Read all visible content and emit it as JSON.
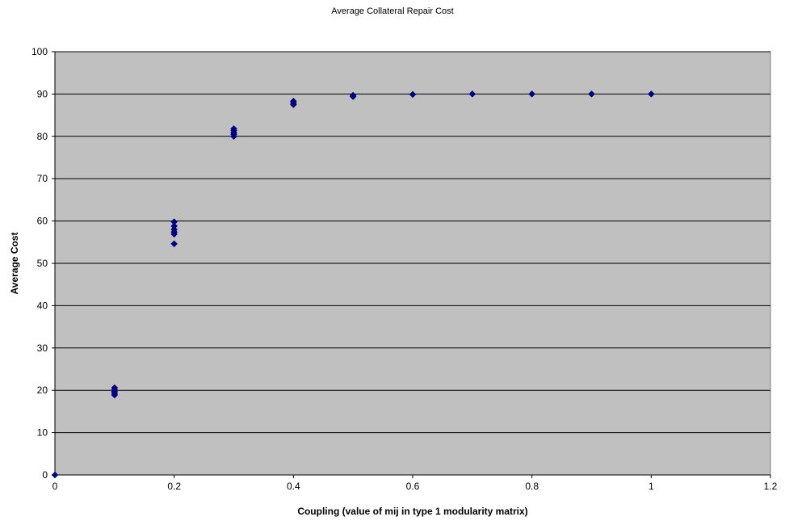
{
  "chart_data": {
    "type": "scatter",
    "title": "Average Collateral Repair Cost",
    "xlabel": "Coupling (value of mij in type 1 modularity matrix)",
    "ylabel": "Average Cost",
    "xlim": [
      0,
      1.2
    ],
    "ylim": [
      0,
      100
    ],
    "x_ticks": [
      "0",
      "0.2",
      "0.4",
      "0.6",
      "0.8",
      "1",
      "1.2"
    ],
    "y_ticks": [
      "0",
      "10",
      "20",
      "30",
      "40",
      "50",
      "60",
      "70",
      "80",
      "90",
      "100"
    ],
    "grid": "horizontal",
    "plot_background": "#c0c0c0",
    "marker_color": "#000080",
    "marker": "diamond",
    "points": [
      {
        "x": 0,
        "y": 0
      },
      {
        "x": 0.1,
        "y": 18.9
      },
      {
        "x": 0.1,
        "y": 19.3
      },
      {
        "x": 0.1,
        "y": 19.7
      },
      {
        "x": 0.1,
        "y": 20.1
      },
      {
        "x": 0.1,
        "y": 20.6
      },
      {
        "x": 0.2,
        "y": 54.6
      },
      {
        "x": 0.2,
        "y": 56.9
      },
      {
        "x": 0.2,
        "y": 57.4
      },
      {
        "x": 0.2,
        "y": 58.0
      },
      {
        "x": 0.2,
        "y": 58.8
      },
      {
        "x": 0.2,
        "y": 59.8
      },
      {
        "x": 0.3,
        "y": 80.0
      },
      {
        "x": 0.3,
        "y": 80.5
      },
      {
        "x": 0.3,
        "y": 80.9
      },
      {
        "x": 0.3,
        "y": 81.4
      },
      {
        "x": 0.3,
        "y": 81.8
      },
      {
        "x": 0.4,
        "y": 87.5
      },
      {
        "x": 0.4,
        "y": 87.9
      },
      {
        "x": 0.4,
        "y": 88.3
      },
      {
        "x": 0.5,
        "y": 89.4
      },
      {
        "x": 0.5,
        "y": 89.7
      },
      {
        "x": 0.6,
        "y": 89.9
      },
      {
        "x": 0.7,
        "y": 90.0
      },
      {
        "x": 0.8,
        "y": 90.0
      },
      {
        "x": 0.9,
        "y": 90.0
      },
      {
        "x": 1.0,
        "y": 90.0
      }
    ]
  }
}
